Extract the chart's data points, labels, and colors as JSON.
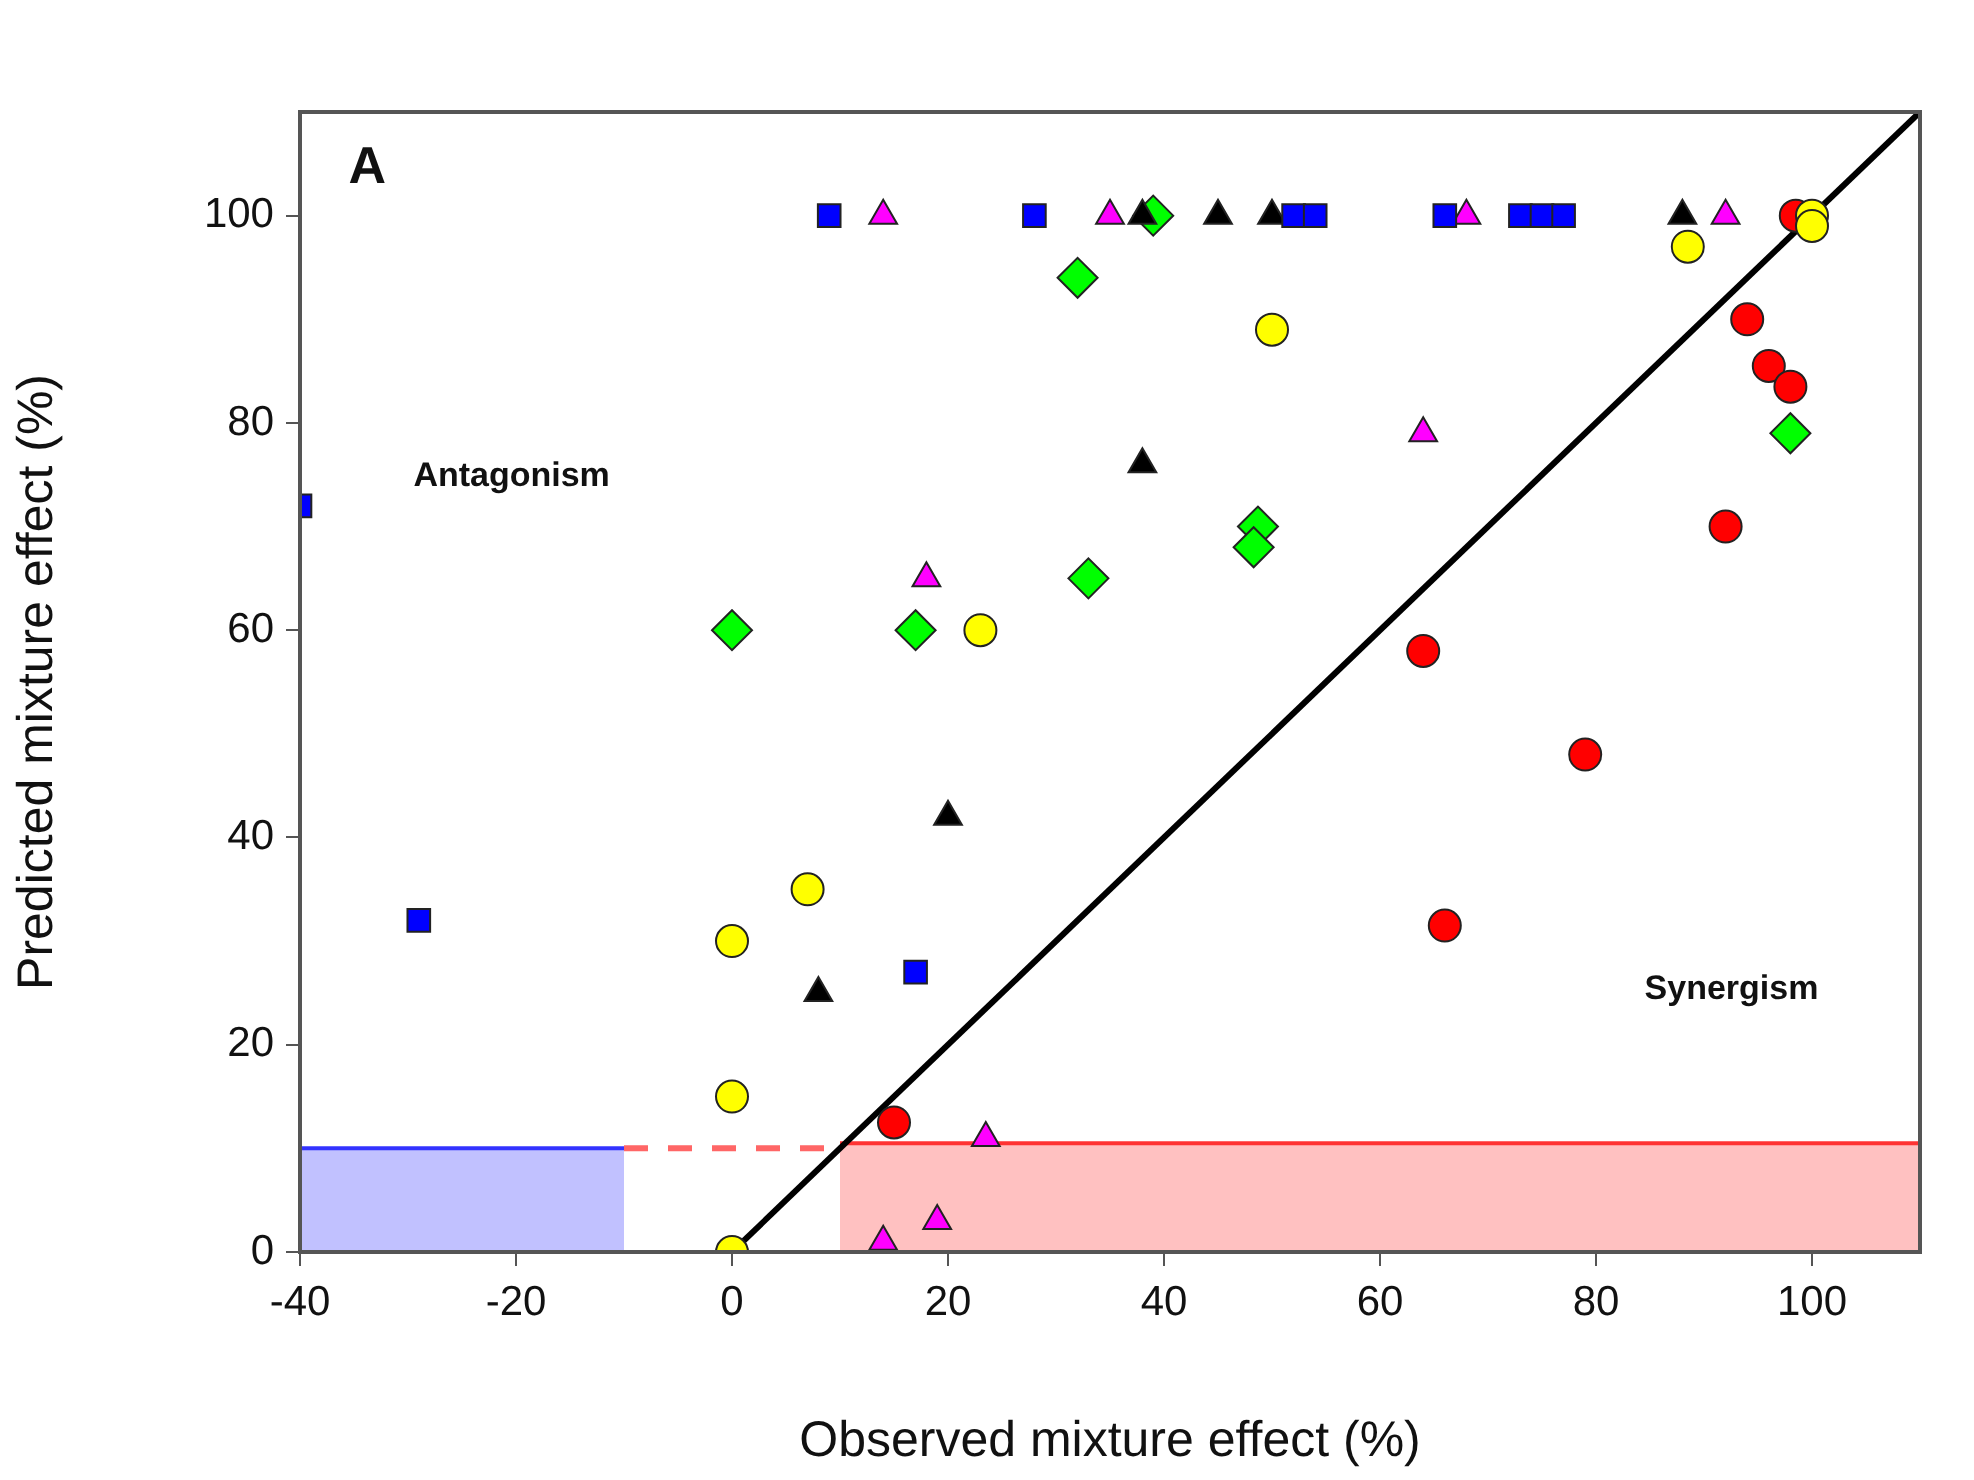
{
  "chart_data": {
    "type": "scatter",
    "xlabel": "Observed mixture effect (%)",
    "ylabel": "Predicted mixture effect (%)",
    "xlim": [
      -40,
      110
    ],
    "xticks": [
      -40,
      -20,
      0,
      20,
      40,
      60,
      80,
      100
    ],
    "ylim": [
      0,
      110
    ],
    "yticks": [
      0,
      20,
      40,
      60,
      80,
      100
    ],
    "grid": false,
    "legend": false,
    "annotations": [
      "A",
      "Antagonism",
      "Synergism"
    ],
    "series": [
      {
        "type": "area",
        "color": "#3333ff",
        "x": [
          -40,
          -10
        ],
        "values": [
          10,
          10
        ],
        "marker": "none"
      },
      {
        "type": "area",
        "color": "#ff3333",
        "x": [
          10,
          110
        ],
        "values": [
          10.5,
          10.5
        ],
        "marker": "none"
      },
      {
        "type": "line",
        "color": "#ff6666",
        "x": [
          -10,
          10
        ],
        "values": [
          10,
          10
        ],
        "marker": "none",
        "line_style": "dashed"
      },
      {
        "type": "line",
        "color": "#000000",
        "x": [
          0,
          110
        ],
        "values": [
          0,
          110
        ],
        "marker": "none",
        "line_style": "solid"
      },
      {
        "type": "scatter",
        "color": "#0000ff",
        "marker": "square",
        "x": [
          -40,
          -29,
          9,
          28,
          17,
          52,
          54,
          66,
          73,
          75,
          77
        ],
        "values": [
          72,
          32,
          100,
          100,
          27,
          100,
          100,
          100,
          100,
          100,
          100
        ]
      },
      {
        "type": "scatter",
        "color": "#ff00ff",
        "marker": "triangle",
        "x": [
          14,
          35,
          68,
          92,
          18,
          64,
          14,
          19,
          23.5
        ],
        "values": [
          100,
          100,
          100,
          100,
          65,
          79,
          1,
          3,
          11
        ]
      },
      {
        "type": "scatter",
        "color": "#000000",
        "marker": "triangle",
        "x": [
          38,
          45,
          50,
          88,
          38,
          20,
          8
        ],
        "values": [
          100,
          100,
          100,
          100,
          76,
          42,
          25
        ]
      },
      {
        "type": "scatter",
        "color": "#00ff00",
        "marker": "diamond",
        "x": [
          32,
          33,
          0,
          17,
          39,
          48.7,
          48.3,
          98
        ],
        "values": [
          94,
          65,
          60,
          60,
          100,
          70,
          68,
          79
        ]
      },
      {
        "type": "scatter",
        "color": "#ffff00",
        "marker": "circle",
        "x": [
          23,
          50,
          88.5,
          100,
          100,
          7,
          0,
          0,
          0
        ],
        "values": [
          60,
          89,
          97,
          100,
          99,
          35,
          30,
          15,
          0
        ]
      },
      {
        "type": "scatter",
        "color": "#ff0000",
        "marker": "circle",
        "x": [
          98.5,
          94,
          96,
          98,
          92,
          64,
          79,
          66,
          15
        ],
        "values": [
          100,
          90,
          85.5,
          83.5,
          70,
          58,
          48,
          31.5,
          12.5
        ]
      }
    ]
  }
}
